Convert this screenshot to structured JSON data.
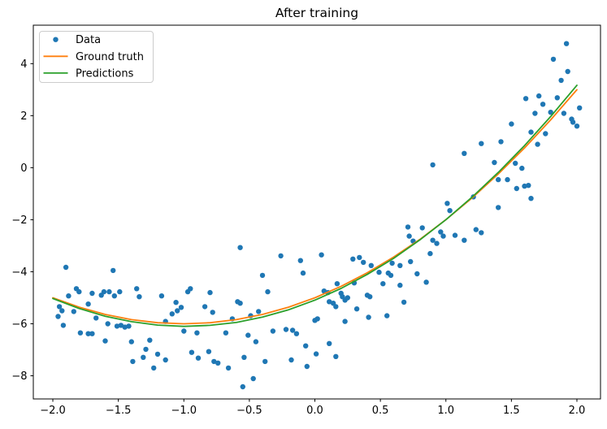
{
  "chart_data": {
    "type": "scatter+line",
    "title": "After training",
    "axes": {
      "xlim": [
        -2.149,
        2.18
      ],
      "ylim": [
        -8.89,
        5.48
      ],
      "x_tick_values": [
        -2.0,
        -1.5,
        -1.0,
        -0.5,
        0.0,
        0.5,
        1.0,
        1.5,
        2.0
      ],
      "x_tick_labels": [
        "−2.0",
        "−1.5",
        "−1.0",
        "−0.5",
        "0.0",
        "0.5",
        "1.0",
        "1.5",
        "2.0"
      ],
      "y_tick_values": [
        4,
        2,
        0,
        -2,
        -4,
        -6,
        -8
      ],
      "y_tick_labels": [
        "4",
        "2",
        "0",
        "−2",
        "−4",
        "−6",
        "−8"
      ],
      "grid": false,
      "spine_color": "#000000"
    },
    "legend": {
      "position": "upper left",
      "items": [
        {
          "label": "Data",
          "color": "#1f77b4",
          "type": "marker"
        },
        {
          "label": "Ground truth",
          "color": "#ff7f0e",
          "type": "line"
        },
        {
          "label": "Predictions",
          "color": "#2ca02c",
          "type": "line"
        }
      ]
    },
    "series": [
      {
        "name": "Data",
        "type": "scatter",
        "color": "#1f77b4",
        "marker": "point",
        "points": [
          [
            -1.95,
            -5.34
          ],
          [
            -1.96,
            -5.72
          ],
          [
            -1.93,
            -5.5
          ],
          [
            -1.92,
            -6.06
          ],
          [
            -1.9,
            -3.83
          ],
          [
            -1.88,
            -4.93
          ],
          [
            -1.84,
            -5.53
          ],
          [
            -1.82,
            -4.65
          ],
          [
            -1.8,
            -4.77
          ],
          [
            -1.79,
            -6.35
          ],
          [
            -1.73,
            -5.24
          ],
          [
            -1.73,
            -6.38
          ],
          [
            -1.7,
            -4.83
          ],
          [
            -1.7,
            -6.38
          ],
          [
            -1.67,
            -5.78
          ],
          [
            -1.63,
            -4.9
          ],
          [
            -1.61,
            -4.77
          ],
          [
            -1.6,
            -6.66
          ],
          [
            -1.58,
            -6.0
          ],
          [
            -1.57,
            -4.77
          ],
          [
            -1.54,
            -3.95
          ],
          [
            -1.53,
            -4.93
          ],
          [
            -1.51,
            -6.09
          ],
          [
            -1.49,
            -4.77
          ],
          [
            -1.48,
            -6.06
          ],
          [
            -1.45,
            -6.13
          ],
          [
            -1.42,
            -6.09
          ],
          [
            -1.4,
            -6.69
          ],
          [
            -1.39,
            -7.45
          ],
          [
            -1.36,
            -4.65
          ],
          [
            -1.34,
            -4.96
          ],
          [
            -1.31,
            -7.29
          ],
          [
            -1.29,
            -6.98
          ],
          [
            -1.26,
            -6.63
          ],
          [
            -1.23,
            -7.7
          ],
          [
            -1.2,
            -7.17
          ],
          [
            -1.17,
            -4.93
          ],
          [
            -1.14,
            -5.91
          ],
          [
            -1.14,
            -7.39
          ],
          [
            -1.09,
            -5.62
          ],
          [
            -1.06,
            -5.18
          ],
          [
            -1.05,
            -5.5
          ],
          [
            -1.02,
            -5.37
          ],
          [
            -1.0,
            -6.28
          ],
          [
            -0.97,
            -4.77
          ],
          [
            -0.95,
            -4.65
          ],
          [
            -0.94,
            -7.1
          ],
          [
            -0.9,
            -6.35
          ],
          [
            -0.89,
            -7.32
          ],
          [
            -0.84,
            -5.34
          ],
          [
            -0.81,
            -7.07
          ],
          [
            -0.8,
            -4.8
          ],
          [
            -0.78,
            -5.56
          ],
          [
            -0.77,
            -7.45
          ],
          [
            -0.74,
            -7.51
          ],
          [
            -0.68,
            -6.35
          ],
          [
            -0.66,
            -7.7
          ],
          [
            -0.63,
            -5.81
          ],
          [
            -0.59,
            -5.15
          ],
          [
            -0.57,
            -3.07
          ],
          [
            -0.57,
            -5.21
          ],
          [
            -0.55,
            -8.42
          ],
          [
            -0.54,
            -7.29
          ],
          [
            -0.51,
            -6.44
          ],
          [
            -0.49,
            -5.69
          ],
          [
            -0.47,
            -8.11
          ],
          [
            -0.45,
            -6.69
          ],
          [
            -0.43,
            -5.53
          ],
          [
            -0.4,
            -4.14
          ],
          [
            -0.38,
            -7.45
          ],
          [
            -0.36,
            -4.77
          ],
          [
            -0.32,
            -6.28
          ],
          [
            -0.26,
            -3.39
          ],
          [
            -0.22,
            -6.22
          ],
          [
            -0.18,
            -7.39
          ],
          [
            -0.17,
            -6.25
          ],
          [
            -0.14,
            -6.38
          ],
          [
            -0.11,
            -3.57
          ],
          [
            -0.09,
            -4.05
          ],
          [
            -0.07,
            -6.85
          ],
          [
            -0.06,
            -7.64
          ],
          [
            0.0,
            -5.87
          ],
          [
            0.01,
            -7.16
          ],
          [
            0.02,
            -5.81
          ],
          [
            0.05,
            -3.35
          ],
          [
            0.07,
            -4.74
          ],
          [
            0.1,
            -4.8
          ],
          [
            0.11,
            -5.15
          ],
          [
            0.11,
            -6.76
          ],
          [
            0.14,
            -5.21
          ],
          [
            0.16,
            -5.34
          ],
          [
            0.16,
            -7.26
          ],
          [
            0.17,
            -4.46
          ],
          [
            0.2,
            -4.83
          ],
          [
            0.21,
            -4.96
          ],
          [
            0.23,
            -5.09
          ],
          [
            0.23,
            -5.91
          ],
          [
            0.25,
            -5.0
          ],
          [
            0.29,
            -3.51
          ],
          [
            0.3,
            -4.43
          ],
          [
            0.32,
            -5.43
          ],
          [
            0.34,
            -3.45
          ],
          [
            0.37,
            -3.64
          ],
          [
            0.4,
            -4.9
          ],
          [
            0.41,
            -5.75
          ],
          [
            0.42,
            -4.96
          ],
          [
            0.43,
            -3.76
          ],
          [
            0.49,
            -4.02
          ],
          [
            0.52,
            -4.46
          ],
          [
            0.55,
            -5.69
          ],
          [
            0.56,
            -4.05
          ],
          [
            0.58,
            -4.14
          ],
          [
            0.59,
            -3.67
          ],
          [
            0.65,
            -3.76
          ],
          [
            0.65,
            -4.52
          ],
          [
            0.68,
            -5.17
          ],
          [
            0.71,
            -2.28
          ],
          [
            0.72,
            -2.63
          ],
          [
            0.73,
            -3.61
          ],
          [
            0.75,
            -2.82
          ],
          [
            0.78,
            -4.08
          ],
          [
            0.82,
            -2.31
          ],
          [
            0.85,
            -4.4
          ],
          [
            0.88,
            -3.3
          ],
          [
            0.9,
            -2.79
          ],
          [
            0.9,
            0.11
          ],
          [
            0.93,
            -2.91
          ],
          [
            0.96,
            -2.47
          ],
          [
            0.98,
            -2.63
          ],
          [
            1.01,
            -1.37
          ],
          [
            1.03,
            -1.65
          ],
          [
            1.07,
            -2.6
          ],
          [
            1.14,
            -2.79
          ],
          [
            1.14,
            0.55
          ],
          [
            1.21,
            -1.12
          ],
          [
            1.23,
            -2.38
          ],
          [
            1.27,
            -2.5
          ],
          [
            1.27,
            0.93
          ],
          [
            1.37,
            0.2
          ],
          [
            1.4,
            -0.46
          ],
          [
            1.4,
            -1.53
          ],
          [
            1.42,
            1.0
          ],
          [
            1.47,
            -0.46
          ],
          [
            1.5,
            1.68
          ],
          [
            1.53,
            0.17
          ],
          [
            1.54,
            -0.8
          ],
          [
            1.58,
            -0.02
          ],
          [
            1.6,
            -0.71
          ],
          [
            1.61,
            2.66
          ],
          [
            1.63,
            -0.68
          ],
          [
            1.65,
            -1.18
          ],
          [
            1.65,
            1.37
          ],
          [
            1.68,
            2.09
          ],
          [
            1.7,
            0.9
          ],
          [
            1.71,
            2.76
          ],
          [
            1.74,
            2.44
          ],
          [
            1.76,
            1.31
          ],
          [
            1.8,
            2.13
          ],
          [
            1.82,
            4.17
          ],
          [
            1.85,
            2.69
          ],
          [
            1.88,
            3.36
          ],
          [
            1.9,
            2.09
          ],
          [
            1.92,
            4.77
          ],
          [
            1.93,
            3.7
          ],
          [
            1.96,
            1.87
          ],
          [
            1.97,
            1.75
          ],
          [
            2.0,
            1.6
          ],
          [
            2.02,
            2.3
          ]
        ]
      },
      {
        "name": "Ground truth",
        "type": "line",
        "color": "#ff7f0e",
        "x": [
          -2.0,
          -1.8,
          -1.6,
          -1.4,
          -1.2,
          -1.0,
          -0.8,
          -0.6,
          -0.4,
          -0.2,
          0.0,
          0.2,
          0.4,
          0.6,
          0.8,
          1.0,
          1.2,
          1.4,
          1.6,
          1.8,
          2.0
        ],
        "y": [
          -5.0,
          -5.36,
          -5.64,
          -5.84,
          -5.96,
          -6.0,
          -5.96,
          -5.84,
          -5.64,
          -5.36,
          -5.0,
          -4.56,
          -4.04,
          -3.44,
          -2.76,
          -2.0,
          -1.16,
          -0.24,
          0.76,
          1.84,
          3.0
        ]
      },
      {
        "name": "Predictions",
        "type": "line",
        "color": "#2ca02c",
        "x": [
          -2.0,
          -1.8,
          -1.6,
          -1.4,
          -1.2,
          -1.0,
          -0.8,
          -0.6,
          -0.4,
          -0.2,
          0.0,
          0.2,
          0.4,
          0.6,
          0.8,
          1.0,
          1.2,
          1.4,
          1.6,
          1.8,
          2.0
        ],
        "y": [
          -5.03,
          -5.41,
          -5.71,
          -5.92,
          -6.05,
          -6.1,
          -6.06,
          -5.95,
          -5.74,
          -5.46,
          -5.09,
          -4.64,
          -4.1,
          -3.49,
          -2.78,
          -2.0,
          -1.13,
          -0.18,
          0.85,
          1.97,
          3.17
        ]
      }
    ]
  }
}
